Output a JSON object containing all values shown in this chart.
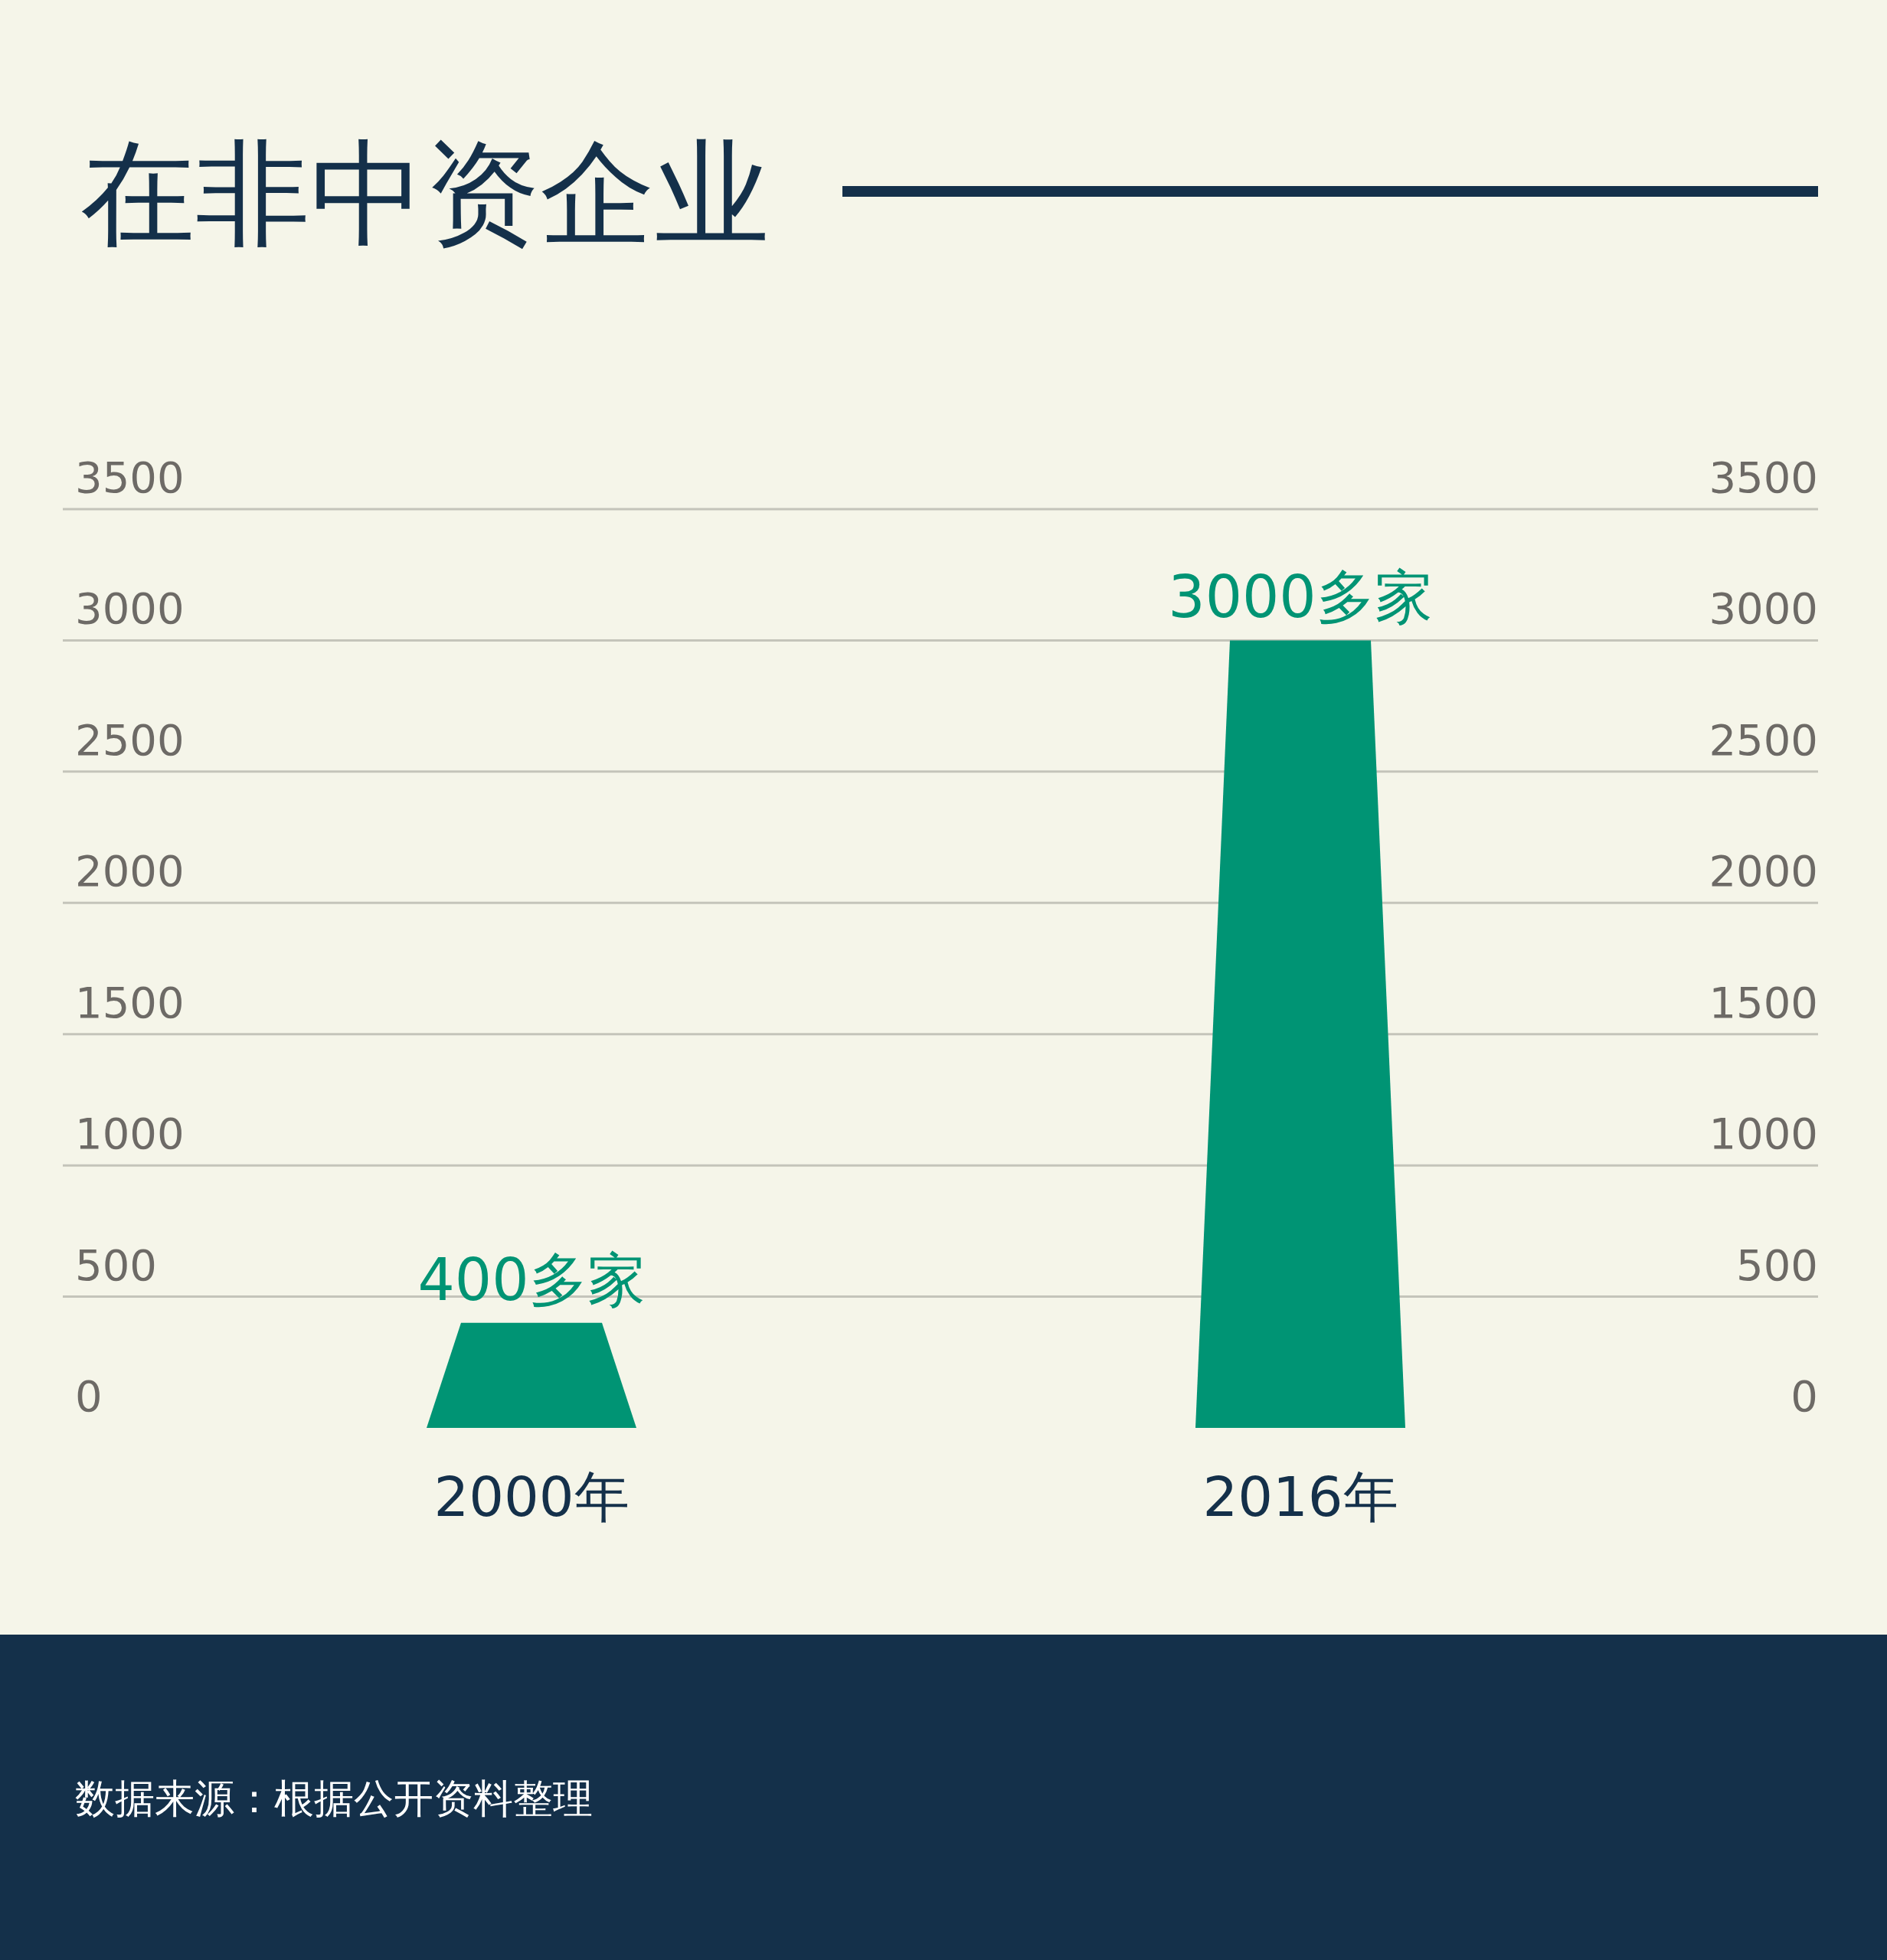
{
  "chart_data": {
    "type": "bar",
    "title": "在非中资企业",
    "categories": [
      "2000年",
      "2016年"
    ],
    "values": [
      400,
      3000
    ],
    "color": "#009474",
    "value_labels": [
      "400多家",
      "3000多家"
    ],
    "ylim": [
      0,
      3500
    ],
    "yticks": [
      0,
      500,
      1000,
      1500,
      2000,
      2500,
      3000,
      3500
    ],
    "y2lim": [
      0,
      3500
    ],
    "y2ticks": [
      0,
      500,
      1000,
      1500,
      2000,
      2500,
      3000,
      3500
    ],
    "grid": "y",
    "annotations": [
      "数据来源：根据公开资料整理"
    ]
  }
}
